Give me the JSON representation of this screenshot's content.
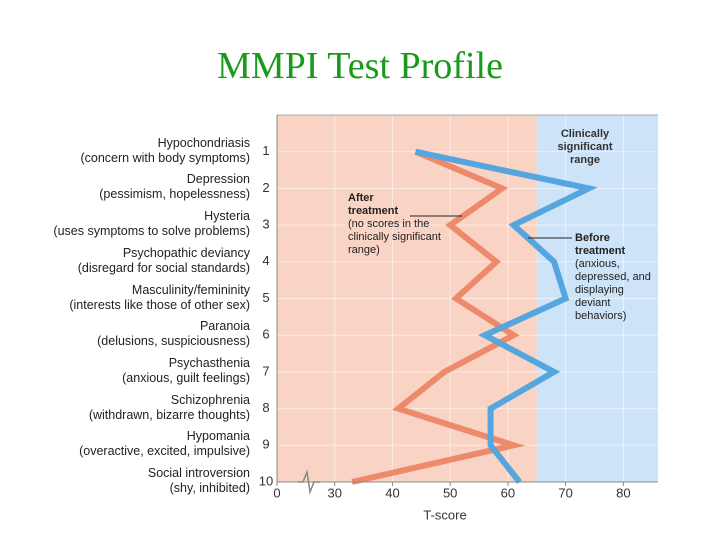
{
  "chart_data": {
    "type": "profile-line",
    "title": "MMPI Test Profile",
    "title_color": "#1a9a1a",
    "categories": [
      "Hypochondriasis",
      "Depression",
      "Hysteria",
      "Psychopathic deviancy",
      "Masculinity/femininity",
      "Paranoia",
      "Psychasthenia",
      "Schizophrenia",
      "Hypomania",
      "Social introversion"
    ],
    "category_notes": [
      "(concern with body symptoms)",
      "(pessimism, hopelessness)",
      "(uses symptoms to solve problems)",
      "(disregard for social standards)",
      "(interests like those of other sex)",
      "(delusions, suspiciousness)",
      "(anxious, guilt feelings)",
      "(withdrawn, bizarre thoughts)",
      "(overactive, excited, impulsive)",
      "(shy, inhibited)"
    ],
    "yticks": [
      1,
      2,
      3,
      4,
      5,
      6,
      7,
      8,
      9,
      10
    ],
    "ylim": [
      0,
      10
    ],
    "xlabel": "T-score",
    "xlim": [
      0,
      86
    ],
    "xbreak": [
      0,
      20
    ],
    "xticks": [
      0,
      30,
      40,
      50,
      60,
      70,
      80
    ],
    "grid": true,
    "regions": [
      {
        "from": 0,
        "to": 65,
        "color": "#f9d3c3"
      },
      {
        "from": 65,
        "to": 86,
        "color": "#cde3f7",
        "label": "Clinically significant range"
      }
    ],
    "series": [
      {
        "name": "After treatment",
        "note": "(no scores in the clinically significant range)",
        "color": "#ee8a6c",
        "values": [
          44,
          59,
          50,
          58,
          51,
          61,
          49,
          41,
          61,
          33
        ]
      },
      {
        "name": "Before treatment",
        "note": "(anxious, depressed, and displaying deviant behaviors)",
        "color": "#55a5df",
        "values": [
          44,
          74,
          61,
          68,
          70,
          56,
          68,
          57,
          57,
          62
        ]
      }
    ]
  }
}
